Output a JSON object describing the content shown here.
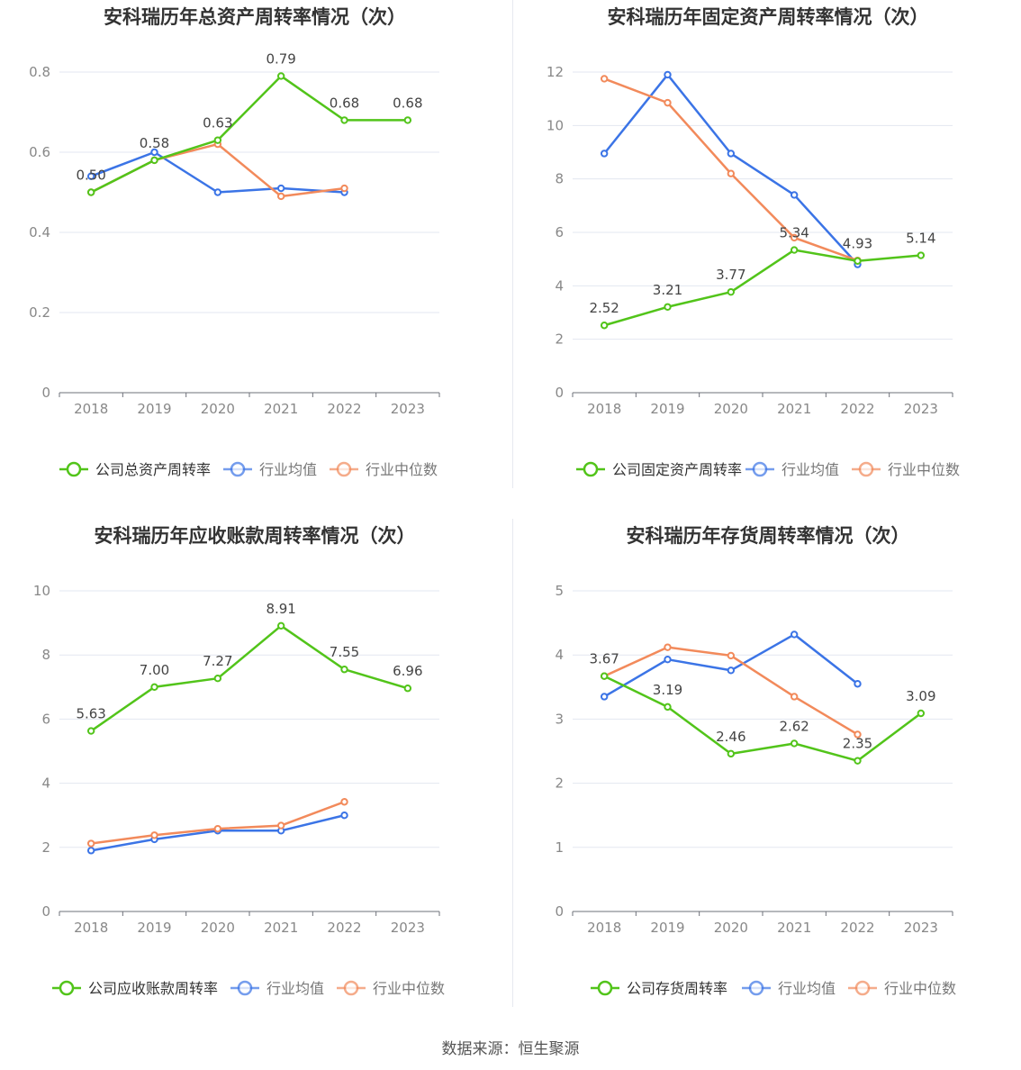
{
  "source": "数据来源：恒生聚源",
  "colors": {
    "company": "#52c41a",
    "avg": "#3b74e6",
    "median": "#f28a5b"
  },
  "chart_data": [
    {
      "type": "line",
      "title": "安科瑞历年总资产周转率情况（次）",
      "categories": [
        "2018",
        "2019",
        "2020",
        "2021",
        "2022",
        "2023"
      ],
      "ylim": [
        0,
        0.8
      ],
      "yticks": [
        "0",
        "0.2",
        "0.4",
        "0.6",
        "0.8"
      ],
      "series": [
        {
          "name": "公司总资产周转率",
          "values": [
            0.5,
            0.58,
            0.63,
            0.79,
            0.68,
            0.68
          ],
          "labels": [
            "0.50",
            "0.58",
            "0.63",
            "0.79",
            "0.68",
            "0.68"
          ]
        },
        {
          "name": "行业均值",
          "values": [
            0.54,
            0.6,
            0.5,
            0.51,
            0.5,
            null
          ]
        },
        {
          "name": "行业中位数",
          "values": [
            0.5,
            0.58,
            0.62,
            0.49,
            0.51,
            null
          ]
        }
      ]
    },
    {
      "type": "line",
      "title": "安科瑞历年固定资产周转率情况（次）",
      "categories": [
        "2018",
        "2019",
        "2020",
        "2021",
        "2022",
        "2023"
      ],
      "ylim": [
        0,
        12
      ],
      "yticks": [
        "0",
        "2",
        "4",
        "6",
        "8",
        "10",
        "12"
      ],
      "series": [
        {
          "name": "公司固定资产周转率",
          "values": [
            2.52,
            3.21,
            3.77,
            5.34,
            4.93,
            5.14
          ],
          "labels": [
            "2.52",
            "3.21",
            "3.77",
            "5.34",
            "4.93",
            "5.14"
          ]
        },
        {
          "name": "行业均值",
          "values": [
            8.95,
            11.9,
            8.95,
            7.4,
            4.8,
            null
          ]
        },
        {
          "name": "行业中位数",
          "values": [
            11.75,
            10.85,
            8.2,
            5.8,
            4.95,
            null
          ]
        }
      ]
    },
    {
      "type": "line",
      "title": "安科瑞历年应收账款周转率情况（次）",
      "categories": [
        "2018",
        "2019",
        "2020",
        "2021",
        "2022",
        "2023"
      ],
      "ylim": [
        0,
        10
      ],
      "yticks": [
        "0",
        "2",
        "4",
        "6",
        "8",
        "10"
      ],
      "series": [
        {
          "name": "公司应收账款周转率",
          "values": [
            5.63,
            7.0,
            7.27,
            8.91,
            7.55,
            6.96
          ],
          "labels": [
            "5.63",
            "7.00",
            "7.27",
            "8.91",
            "7.55",
            "6.96"
          ]
        },
        {
          "name": "行业均值",
          "values": [
            1.9,
            2.25,
            2.52,
            2.52,
            3.0,
            null
          ]
        },
        {
          "name": "行业中位数",
          "values": [
            2.12,
            2.38,
            2.58,
            2.68,
            3.42,
            null
          ]
        }
      ]
    },
    {
      "type": "line",
      "title": "安科瑞历年存货周转率情况（次）",
      "categories": [
        "2018",
        "2019",
        "2020",
        "2021",
        "2022",
        "2023"
      ],
      "ylim": [
        0,
        5
      ],
      "yticks": [
        "0",
        "1",
        "2",
        "3",
        "4",
        "5"
      ],
      "series": [
        {
          "name": "公司存货周转率",
          "values": [
            3.67,
            3.19,
            2.46,
            2.62,
            2.35,
            3.09
          ],
          "labels": [
            "3.67",
            "3.19",
            "2.46",
            "2.62",
            "2.35",
            "3.09"
          ]
        },
        {
          "name": "行业均值",
          "values": [
            3.35,
            3.93,
            3.76,
            4.32,
            3.55,
            null
          ]
        },
        {
          "name": "行业中位数",
          "values": [
            3.67,
            4.12,
            3.99,
            3.35,
            2.76,
            null
          ]
        }
      ]
    }
  ]
}
